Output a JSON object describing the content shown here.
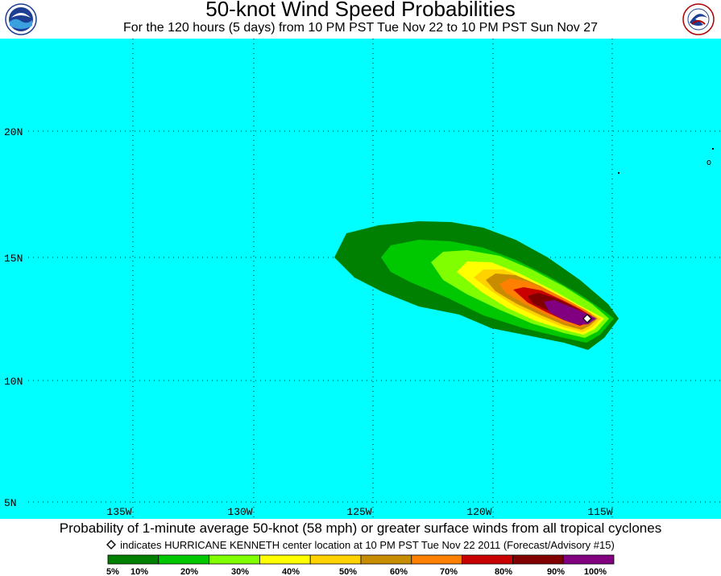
{
  "header": {
    "title": "50-knot Wind Speed Probabilities",
    "subtitle": "For the 120 hours (5 days) from 10 PM PST Tue Nov 22 to 10 PM PST Sun Nov 27"
  },
  "logos": {
    "left": "NOAA",
    "right": "NATIONAL WEATHER SERVICE"
  },
  "map": {
    "background_color": "#00ffff",
    "grid_style": "dotted",
    "lat_labels": [
      "20N",
      "15N",
      "10N",
      "5N"
    ],
    "lon_labels": [
      "135W",
      "130W",
      "125W",
      "120W",
      "115W"
    ],
    "storm_marker": "diamond"
  },
  "footer": {
    "line1": "Probability of 1-minute average 50-knot (58 mph) or greater surface winds from all tropical cyclones",
    "line2": "indicates HURRICANE KENNETH center location at 10 PM PST Tue Nov 22 2011 (Forecast/Advisory #15)"
  },
  "legend": {
    "labels": [
      "5%",
      "10%",
      "20%",
      "30%",
      "40%",
      "50%",
      "60%",
      "70%",
      "80%",
      "90%",
      "100%"
    ],
    "colors": [
      "#008000",
      "#00c800",
      "#80ff00",
      "#ffff00",
      "#ffd200",
      "#c88c00",
      "#ff8000",
      "#c80000",
      "#800000",
      "#800080"
    ]
  }
}
